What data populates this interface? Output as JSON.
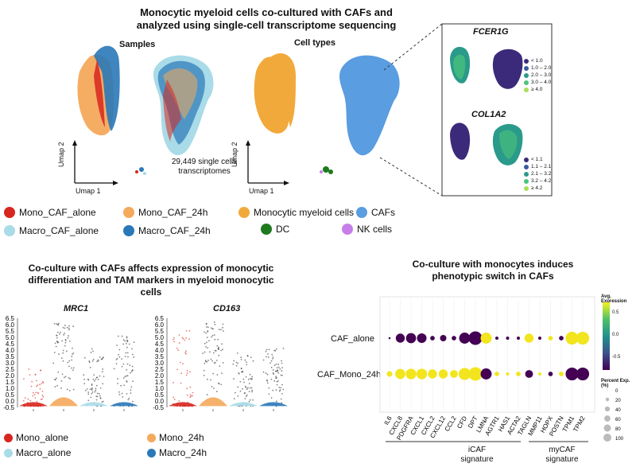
{
  "main_title": "Monocytic myeloid cells co-cultured with CAFs and analyzed using single-cell transcriptome sequencing",
  "panel_a": {
    "samples_title": "Samples",
    "celltypes_title": "Cell types",
    "umap_y": "Umap 2",
    "umap_x": "Umap 1",
    "cell_count": "29,449 single cells transcriptomes",
    "sample_legend": [
      {
        "label": "Mono_CAF_alone",
        "color": "#d7261e"
      },
      {
        "label": "Mono_CAF_24h",
        "color": "#f4a95c"
      },
      {
        "label": "Macro_CAF_alone",
        "color": "#a9dbe8"
      },
      {
        "label": "Macro_CAF_24h",
        "color": "#2a78b8"
      }
    ],
    "celltype_legend": [
      {
        "label": "Monocytic myeloid cells",
        "color": "#f2a93b"
      },
      {
        "label": "CAFs",
        "color": "#5a9de0"
      },
      {
        "label": "DC",
        "color": "#1e7a1e"
      },
      {
        "label": "NK cells",
        "color": "#c77ee8"
      }
    ],
    "fcer1g": {
      "title": "FCER1G",
      "bins": [
        "< 1.0",
        "1.0 – 2.0",
        "2.0 – 3.0",
        "3.0 – 4.0",
        "≥ 4.0"
      ]
    },
    "col1a2": {
      "title": "COL1A2",
      "bins": [
        "< 1.1",
        "1.1 – 2.1",
        "2.1 – 3.2",
        "3.2 – 4.2",
        "≥ 4.2"
      ]
    },
    "bin_colors": [
      "#3b2a7a",
      "#3a5a9e",
      "#2a9a8a",
      "#4cc47a",
      "#a8e05a"
    ]
  },
  "panel_b": {
    "title": "Co-culture with CAFs affects expression of monocytic differentiation and TAM markers in myeloid monocytic cells",
    "genes": [
      "MRC1",
      "CD163"
    ],
    "y_ticks": [
      "6.5",
      "6.0",
      "5.5",
      "5.0",
      "4.5",
      "4.0",
      "3.5",
      "3.0",
      "2.5",
      "2.0",
      "1.5",
      "1.0",
      "0.5",
      "0.0",
      "-0.5"
    ],
    "legend": [
      {
        "label": "Mono_alone",
        "color": "#d7261e"
      },
      {
        "label": "Mono_24h",
        "color": "#f4a95c"
      },
      {
        "label": "Macro_alone",
        "color": "#a9dbe8"
      },
      {
        "label": "Macro_24h",
        "color": "#2a78b8"
      }
    ]
  },
  "panel_c": {
    "title": "Co-culture with monocytes induces phenotypic switch in CAFs",
    "rows": [
      "CAF_alone",
      "CAF_Mono_24h"
    ],
    "genes": [
      "IL6",
      "CXCL8",
      "PDGFRA",
      "CXCL1",
      "CXCL2",
      "CXCL12",
      "CCL2",
      "CFD",
      "DPT",
      "LMNA",
      "AGTR1",
      "HAS1",
      "ACTA2",
      "TAGLN",
      "MMP11",
      "HOPX",
      "POSTN",
      "TPM1",
      "TPM2"
    ],
    "group_icaf": "iCAF signature",
    "group_mycaf": "myCAF signature",
    "colorbar_title": "Avg. Expression",
    "colorbar_ticks": [
      "0.5",
      "0.0",
      "-0.5"
    ],
    "size_title": "Percent Exp. (%)",
    "size_ticks": [
      "0",
      "20",
      "40",
      "60",
      "80",
      "100"
    ]
  },
  "chart_data": {
    "type": "scatter",
    "title": "Co-culture with monocytes induces phenotypic switch in CAFs",
    "categories": [
      "IL6",
      "CXCL8",
      "PDGFRA",
      "CXCL1",
      "CXCL2",
      "CXCL12",
      "CCL2",
      "CFD",
      "DPT",
      "LMNA",
      "AGTR1",
      "HAS1",
      "ACTA2",
      "TAGLN",
      "MMP11",
      "HOPX",
      "POSTN",
      "TPM1",
      "TPM2"
    ],
    "series": [
      {
        "name": "CAF_alone",
        "avg_expression": [
          -0.4,
          -0.8,
          -0.8,
          -0.8,
          -0.7,
          -0.7,
          -0.6,
          -0.9,
          -0.8,
          0.9,
          -0.5,
          -0.5,
          -0.6,
          0.9,
          -0.7,
          0.8,
          -0.9,
          0.9,
          0.9
        ],
        "percent_exp": [
          2,
          40,
          50,
          45,
          10,
          20,
          10,
          60,
          90,
          60,
          5,
          5,
          5,
          40,
          5,
          10,
          10,
          80,
          80
        ]
      },
      {
        "name": "CAF_Mono_24h",
        "avg_expression": [
          0.7,
          0.9,
          0.9,
          0.9,
          0.8,
          0.8,
          0.9,
          0.9,
          0.9,
          -0.9,
          0.6,
          0.6,
          0.9,
          -0.8,
          0.8,
          -0.8,
          0.9,
          -0.9,
          -0.9
        ],
        "percent_exp": [
          15,
          50,
          55,
          55,
          40,
          40,
          30,
          70,
          90,
          60,
          10,
          5,
          10,
          30,
          5,
          10,
          10,
          80,
          80
        ]
      }
    ],
    "colorbar": [
      -0.5,
      0.5
    ],
    "size_range": [
      0,
      100
    ]
  }
}
